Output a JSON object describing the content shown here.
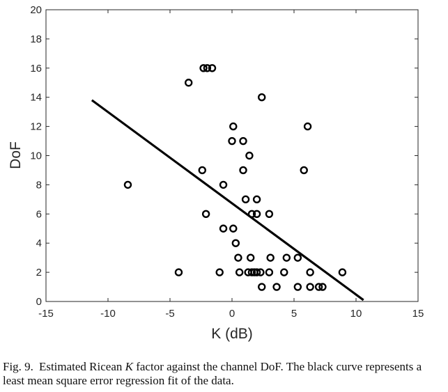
{
  "chart_data": {
    "type": "scatter",
    "xlabel": "K (dB)",
    "ylabel": "DoF",
    "xlim": [
      -15,
      15
    ],
    "ylim": [
      0,
      20
    ],
    "xticks": [
      -15,
      -10,
      -5,
      0,
      5,
      10,
      15
    ],
    "yticks": [
      0,
      2,
      4,
      6,
      8,
      10,
      12,
      14,
      16,
      18,
      20
    ],
    "grid": false,
    "points": [
      [
        -8.4,
        8
      ],
      [
        -4.3,
        2
      ],
      [
        -3.5,
        15
      ],
      [
        -2.3,
        16
      ],
      [
        -2.0,
        16
      ],
      [
        -1.6,
        16
      ],
      [
        -2.4,
        9
      ],
      [
        -2.1,
        6
      ],
      [
        -1.0,
        2
      ],
      [
        -0.7,
        8
      ],
      [
        -0.7,
        5
      ],
      [
        0.0,
        11
      ],
      [
        0.1,
        12
      ],
      [
        0.1,
        5
      ],
      [
        0.3,
        4
      ],
      [
        0.5,
        3
      ],
      [
        0.6,
        2
      ],
      [
        0.9,
        11
      ],
      [
        0.9,
        9
      ],
      [
        1.1,
        7
      ],
      [
        1.4,
        10
      ],
      [
        1.3,
        2
      ],
      [
        1.5,
        3
      ],
      [
        1.6,
        6
      ],
      [
        1.6,
        2
      ],
      [
        1.8,
        2
      ],
      [
        2.0,
        2
      ],
      [
        2.0,
        7
      ],
      [
        2.0,
        6
      ],
      [
        2.4,
        14
      ],
      [
        2.3,
        2
      ],
      [
        2.4,
        1
      ],
      [
        3.0,
        6
      ],
      [
        3.0,
        2
      ],
      [
        3.1,
        3
      ],
      [
        3.6,
        1
      ],
      [
        4.2,
        2
      ],
      [
        4.4,
        3
      ],
      [
        5.3,
        3
      ],
      [
        5.3,
        1
      ],
      [
        5.8,
        9
      ],
      [
        6.1,
        12
      ],
      [
        6.3,
        2
      ],
      [
        6.3,
        1
      ],
      [
        7.0,
        1
      ],
      [
        7.3,
        1
      ],
      [
        8.9,
        2
      ]
    ],
    "regression_line": {
      "x": [
        -11.3,
        10.6
      ],
      "y": [
        13.8,
        0.1
      ]
    }
  },
  "caption": {
    "fig_label": "Fig. 9.",
    "text_before": "Estimated Ricean ",
    "k_symbol": "K",
    "text_after": " factor against the channel DoF. The black curve represents a least mean square error regression fit of the data."
  }
}
